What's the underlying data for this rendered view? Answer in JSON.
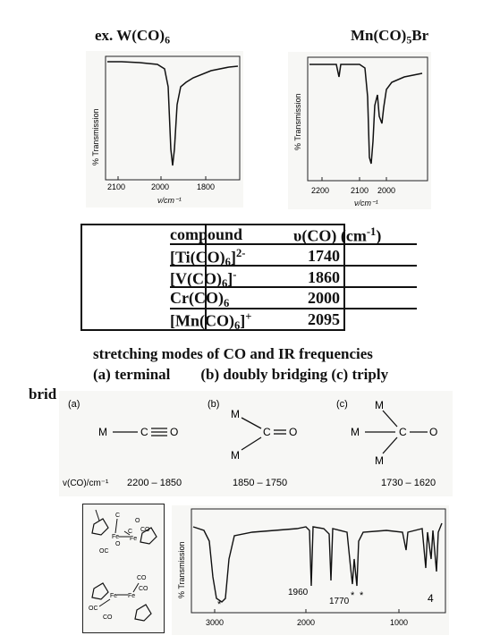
{
  "headings": {
    "left": {
      "text": "ex.  W(CO)",
      "sub": "6"
    },
    "right": {
      "text": "Mn(CO)",
      "sub": "5",
      "tail": "Br"
    }
  },
  "spectrum_w": {
    "ylabel": "% Transmission",
    "xticks": [
      "2100",
      "2000",
      "1800"
    ],
    "xlabel": "ν/cm⁻¹"
  },
  "spectrum_mn": {
    "ylabel": "% Transmission",
    "xticks": [
      "2200",
      "2100",
      "2000"
    ],
    "xlabel": "ν/cm⁻¹"
  },
  "table": {
    "header_compound": "compound",
    "header_freq": "υ(CO) (cm",
    "header_freq_sup": "-1",
    "header_freq_tail": ")",
    "rows": [
      {
        "name": "[Ti(CO)",
        "sub": "6",
        "sup": "2-",
        "tail": "]",
        "value": "1740"
      },
      {
        "name": "[V(CO)",
        "sub": "6",
        "sup": "-",
        "tail": "]",
        "value": "1860"
      },
      {
        "name": "Cr(CO)",
        "sub": "6",
        "sup": "",
        "tail": "",
        "value": "2000"
      },
      {
        "name": "[Mn(CO)",
        "sub": "6",
        "sup": "+",
        "tail": "]",
        "value": "2095"
      }
    ]
  },
  "caption": {
    "line1": "stretching modes of CO and IR frequencies",
    "line2": "(a) terminal        (b) doubly bridging (c) triply",
    "line3": "brid"
  },
  "modes": {
    "a": {
      "label": "(a)",
      "m": "M",
      "c": "C",
      "o": "O",
      "range": "2200 – 1850",
      "axis_label": "v(CO)/cm⁻¹"
    },
    "b": {
      "label": "(b)",
      "m": "M",
      "c": "C",
      "o": "O",
      "range": "1850 – 1750"
    },
    "c": {
      "label": "(c)",
      "m": "M",
      "c": "C",
      "o": "O",
      "range": "1730 – 1620"
    }
  },
  "structures": {
    "atoms": [
      "C",
      "C",
      "O",
      "O",
      "CO",
      "Fe",
      "Fe",
      "OC",
      "CO",
      "CO",
      "Fe",
      "Fe",
      "OC",
      "CO"
    ]
  },
  "spectrum_fe": {
    "ylabel": "% Transmission",
    "xticks": [
      "3000",
      "2000",
      "1000"
    ],
    "ann_1960": "1960",
    "ann_1770": "1770",
    "star": "*",
    "page": "4"
  }
}
